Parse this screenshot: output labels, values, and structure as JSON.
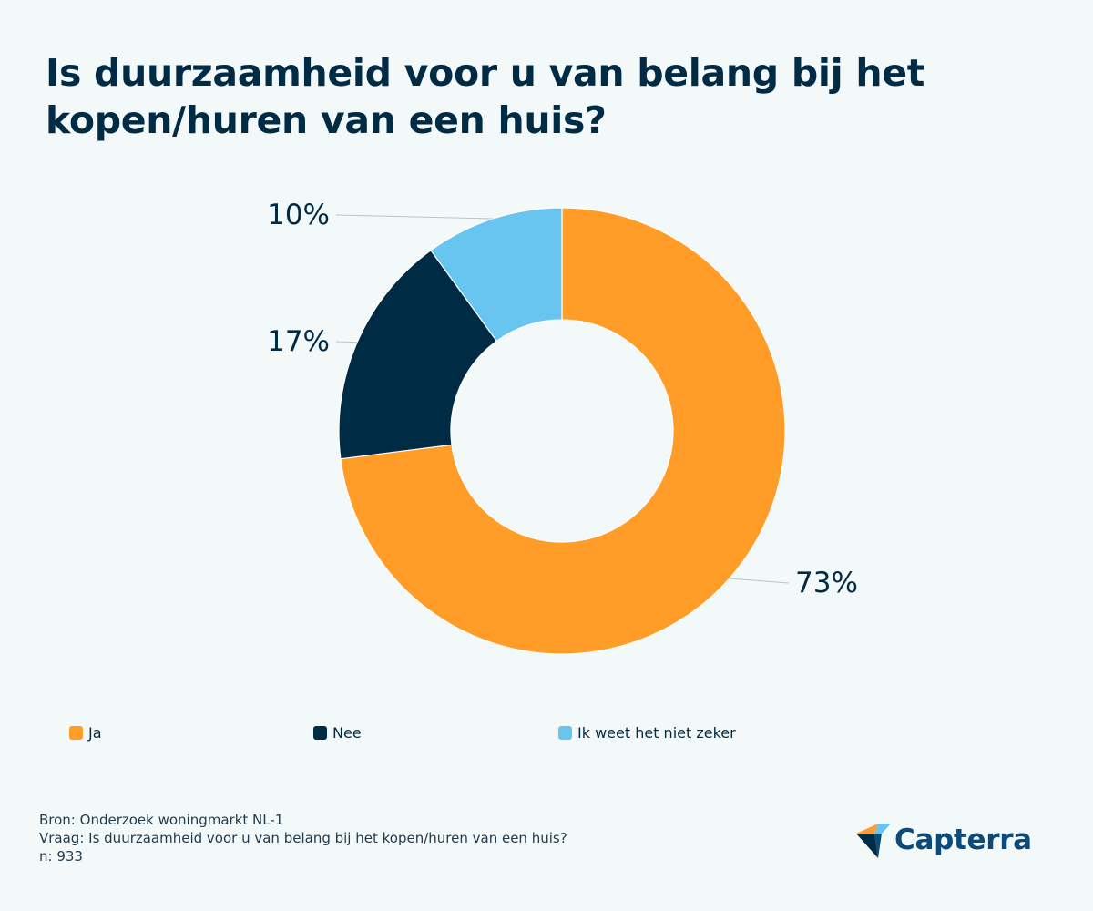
{
  "page": {
    "background": "#f3f8f9"
  },
  "chart_data": {
    "type": "pie",
    "title": "Is duurzaamheid voor u van belang bij het kopen/huren van een huis?",
    "style": "donut",
    "slices": [
      {
        "label": "Ja",
        "value": 73,
        "display": "73%",
        "color": "#ff9d28"
      },
      {
        "label": "Nee",
        "value": 17,
        "display": "17%",
        "color": "#002b45"
      },
      {
        "label": "Ik weet het niet zeker",
        "value": 10,
        "display": "10%",
        "color": "#68c5ef"
      }
    ],
    "legend_position": "bottom"
  },
  "footer": {
    "source": "Bron: Onderzoek woningmarkt NL-1",
    "question": "Vraag: Is duurzaamheid voor u van belang bij het kopen/huren van een huis?",
    "n": "n: 933"
  },
  "brand": {
    "name": "Capterra",
    "icon": "capterra-logo-icon",
    "color": "#0c4a7a"
  }
}
